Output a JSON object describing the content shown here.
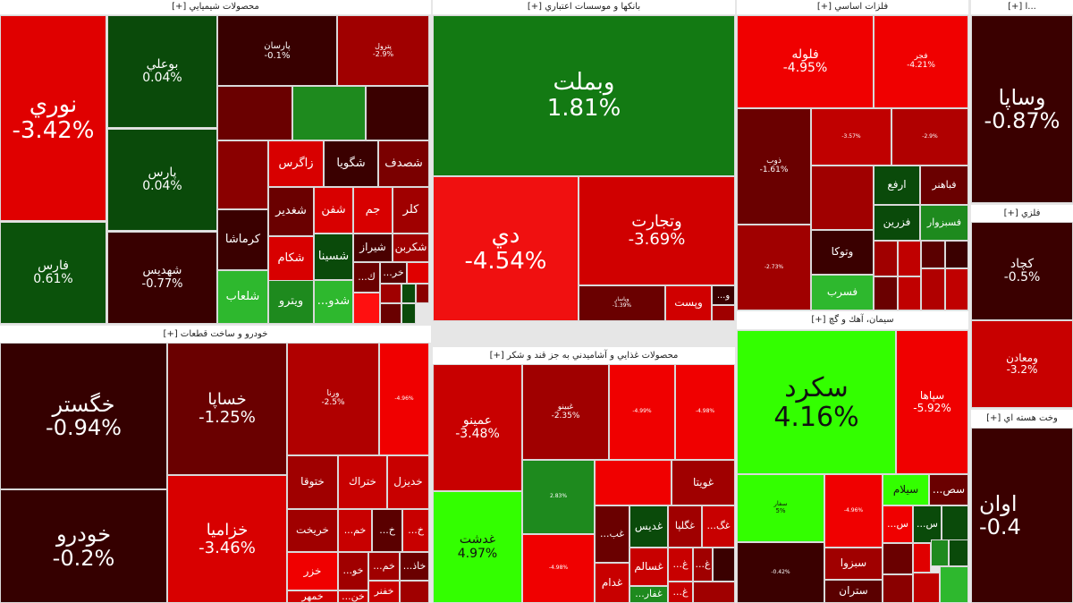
{
  "colors": {
    "strong_red": "#f00000",
    "red": "#d00000",
    "dark_red": "#3a0000",
    "dark_green": "#0a4d0a",
    "green": "#137a13",
    "bright_green": "#33ff00"
  },
  "sections": [
    {
      "title": "محصولات شيميايي [+]",
      "tiles": [
        {
          "symbol": "نوري",
          "change": "-3.42%",
          "color": "#e00000"
        },
        {
          "symbol": "فارس",
          "change": "0.61%",
          "color": "#0b520b"
        },
        {
          "symbol": "بوعلي",
          "change": "0.04%",
          "color": "#0a4a0a"
        },
        {
          "symbol": "پارس",
          "change": "0.04%",
          "color": "#0a4a0a"
        },
        {
          "symbol": "شهديس",
          "change": "-0.77%",
          "color": "#380000"
        },
        {
          "symbol": "پارسان",
          "change": "-0.1%",
          "color": "#380000"
        },
        {
          "symbol": "پترول",
          "change": "-2.9%",
          "color": "#a00000"
        },
        {
          "symbol": "",
          "change": "",
          "color": "#6a0000"
        },
        {
          "symbol": "",
          "change": "",
          "color": "#1e8a1e"
        },
        {
          "symbol": "",
          "change": "",
          "color": "#3a0000"
        },
        {
          "symbol": "",
          "change": "",
          "color": "#8a0000"
        },
        {
          "symbol": "زاگرس",
          "change": "",
          "color": "#d80000"
        },
        {
          "symbol": "شگويا",
          "change": "",
          "color": "#3a0000"
        },
        {
          "symbol": "شصدف",
          "change": "",
          "color": "#7a0000"
        },
        {
          "symbol": "شغدير",
          "change": "",
          "color": "#6a0000"
        },
        {
          "symbol": "شفن",
          "change": "",
          "color": "#d80000"
        },
        {
          "symbol": "جم",
          "change": "",
          "color": "#d80000"
        },
        {
          "symbol": "كلر",
          "change": "",
          "color": "#a00000"
        },
        {
          "symbol": "كرماشا",
          "change": "",
          "color": "#3a0000"
        },
        {
          "symbol": "شكام",
          "change": "",
          "color": "#d80000"
        },
        {
          "symbol": "شسينا",
          "change": "",
          "color": "#0a4a0a"
        },
        {
          "symbol": "شيراز",
          "change": "",
          "color": "#4a0000"
        },
        {
          "symbol": "شكربن",
          "change": "",
          "color": "#a00000"
        },
        {
          "symbol": "شلعاب",
          "change": "",
          "color": "#2eb82e"
        },
        {
          "symbol": "ويترو",
          "change": "",
          "color": "#1e8a1e"
        },
        {
          "symbol": "شدو...",
          "change": "",
          "color": "#2eb82e"
        },
        {
          "symbol": "ك...",
          "change": "",
          "color": "#6a0000"
        },
        {
          "symbol": "خر...",
          "change": "",
          "color": "#5a0000"
        },
        {
          "symbol": "",
          "change": "",
          "color": "#e00000"
        },
        {
          "symbol": "",
          "change": "",
          "color": "#ff1010"
        },
        {
          "symbol": "",
          "change": "",
          "color": "#a00000"
        },
        {
          "symbol": "",
          "change": "",
          "color": "#0a4a0a"
        },
        {
          "symbol": "",
          "change": "",
          "color": "#8a0000"
        },
        {
          "symbol": "",
          "change": "",
          "color": "#0a4a0a"
        },
        {
          "symbol": "",
          "change": "",
          "color": "#6a0000"
        }
      ]
    },
    {
      "title": "بانكها و موسسات اعتباري [+]",
      "tiles": [
        {
          "symbol": "وبملت",
          "change": "1.81%",
          "color": "#137a13"
        },
        {
          "symbol": "دي",
          "change": "-4.54%",
          "color": "#f01010"
        },
        {
          "symbol": "وتجارت",
          "change": "-3.69%",
          "color": "#d00000"
        },
        {
          "symbol": "وپاسار",
          "change": "-1.39%",
          "color": "#6a0000"
        },
        {
          "symbol": "وپست",
          "change": "",
          "color": "#d00000"
        },
        {
          "symbol": "و...",
          "change": "",
          "color": "#3a0000"
        },
        {
          "symbol": "",
          "change": "",
          "color": "#a00000"
        }
      ]
    },
    {
      "title": "فلزات اساسي [+]",
      "tiles": [
        {
          "symbol": "فلوله",
          "change": "-4.95%",
          "color": "#f00000"
        },
        {
          "symbol": "فجر",
          "change": "-4.21%",
          "color": "#f00000"
        },
        {
          "symbol": "ذوب",
          "change": "-1.61%",
          "color": "#6a0000"
        },
        {
          "symbol": "",
          "change": "-3.57%",
          "color": "#c00000"
        },
        {
          "symbol": "",
          "change": "-2.9%",
          "color": "#b00000"
        },
        {
          "symbol": "",
          "change": "",
          "color": "#a00000"
        },
        {
          "symbol": "ارفع",
          "change": "",
          "color": "#0a4a0a"
        },
        {
          "symbol": "فباهنر",
          "change": "",
          "color": "#6a0000"
        },
        {
          "symbol": "فزرين",
          "change": "",
          "color": "#0a4a0a"
        },
        {
          "symbol": "فسبزوار",
          "change": "",
          "color": "#1e8a1e"
        },
        {
          "symbol": "",
          "change": "-2.73%",
          "color": "#a00000"
        },
        {
          "symbol": "وتوكا",
          "change": "",
          "color": "#3a0000"
        },
        {
          "symbol": "فسرب",
          "change": "",
          "color": "#2eb82e"
        },
        {
          "symbol": "",
          "change": "",
          "color": "#a00000"
        },
        {
          "symbol": "",
          "change": "",
          "color": "#c00000"
        },
        {
          "symbol": "",
          "change": "",
          "color": "#5a0000"
        },
        {
          "symbol": "",
          "change": "",
          "color": "#3a0000"
        },
        {
          "symbol": "",
          "change": "",
          "color": "#6a0000"
        },
        {
          "symbol": "",
          "change": "",
          "color": "#c00000"
        },
        {
          "symbol": "",
          "change": "",
          "color": "#b00000"
        },
        {
          "symbol": "",
          "change": "",
          "color": "#c00000"
        }
      ]
    },
    {
      "title": "سيمان، آهك و گچ [+]",
      "tiles": [
        {
          "symbol": "سكرد",
          "change": "4.16%",
          "color": "#33ff00",
          "dark": true
        },
        {
          "symbol": "سپاها",
          "change": "-5.92%",
          "color": "#f00000"
        },
        {
          "symbol": "سفار",
          "change": "5%",
          "color": "#33ff00",
          "dark": true
        },
        {
          "symbol": "",
          "change": "-4.96%",
          "color": "#f00000"
        },
        {
          "symbol": "سيلام",
          "change": "",
          "color": "#33ff00",
          "dark": true
        },
        {
          "symbol": "سص...",
          "change": "",
          "color": "#6a0000"
        },
        {
          "symbol": "س...",
          "change": "",
          "color": "#f00000"
        },
        {
          "symbol": "س...",
          "change": "",
          "color": "#0a4a0a"
        },
        {
          "symbol": "",
          "change": "",
          "color": "#0a4a0a"
        },
        {
          "symbol": "",
          "change": "-0.42%",
          "color": "#3a0000"
        },
        {
          "symbol": "سبزوا",
          "change": "",
          "color": "#a00000"
        },
        {
          "symbol": "ستران",
          "change": "",
          "color": "#5a0000"
        },
        {
          "symbol": "",
          "change": "",
          "color": "#6a0000"
        },
        {
          "symbol": "",
          "change": "",
          "color": "#e00000"
        },
        {
          "symbol": "",
          "change": "",
          "color": "#1e8a1e"
        },
        {
          "symbol": "",
          "change": "",
          "color": "#0a4a0a"
        },
        {
          "symbol": "",
          "change": "",
          "color": "#8a0000"
        },
        {
          "symbol": "",
          "change": "",
          "color": "#c00000"
        },
        {
          "symbol": "",
          "change": "",
          "color": "#2eb82e"
        }
      ]
    },
    {
      "title": "...ا [+]",
      "tiles": [
        {
          "symbol": "وساپا",
          "change": "-0.87%",
          "color": "#3a0000"
        }
      ]
    },
    {
      "title": "فلزي [+]",
      "tiles": [
        {
          "symbol": "كچاد",
          "change": "-0.5%",
          "color": "#3a0000"
        },
        {
          "symbol": "ومعادن",
          "change": "-3.2%",
          "color": "#c80000"
        }
      ]
    },
    {
      "title": "وخت هسته اي [+]",
      "tiles": [
        {
          "symbol": "اوان",
          "change": "-0.4",
          "color": "#3a0000"
        }
      ]
    },
    {
      "title": "خودرو و ساخت قطعات [+]",
      "tiles": [
        {
          "symbol": "خگستر",
          "change": "-0.94%",
          "color": "#350000"
        },
        {
          "symbol": "خودرو",
          "change": "-0.2%",
          "color": "#350000"
        },
        {
          "symbol": "خساپا",
          "change": "-1.25%",
          "color": "#6a0000"
        },
        {
          "symbol": "خزاميا",
          "change": "-3.46%",
          "color": "#d80000"
        },
        {
          "symbol": "ورنا",
          "change": "-2.5%",
          "color": "#b00000"
        },
        {
          "symbol": "",
          "change": "-4.96%",
          "color": "#f00000"
        },
        {
          "symbol": "ختوقا",
          "change": "",
          "color": "#a00000"
        },
        {
          "symbol": "ختراك",
          "change": "",
          "color": "#c80000"
        },
        {
          "symbol": "خديزل",
          "change": "",
          "color": "#c80000"
        },
        {
          "symbol": "خريخت",
          "change": "",
          "color": "#a00000"
        },
        {
          "symbol": "خم...",
          "change": "",
          "color": "#c80000"
        },
        {
          "symbol": "خ...",
          "change": "",
          "color": "#5a0000"
        },
        {
          "symbol": "خ...",
          "change": "",
          "color": "#c80000"
        },
        {
          "symbol": "خزر",
          "change": "",
          "color": "#f00000"
        },
        {
          "symbol": "خو...",
          "change": "",
          "color": "#a00000"
        },
        {
          "symbol": "خم...",
          "change": "",
          "color": "#a00000"
        },
        {
          "symbol": "خاذ...",
          "change": "",
          "color": "#6a0000"
        },
        {
          "symbol": "خمهر",
          "change": "",
          "color": "#d00000"
        },
        {
          "symbol": "خن...",
          "change": "",
          "color": "#c80000"
        },
        {
          "symbol": "خفنر",
          "change": "",
          "color": "#c80000"
        },
        {
          "symbol": "",
          "change": "",
          "color": "#a00000"
        }
      ]
    },
    {
      "title": "محصولات غذايي و آشاميدني به جز قند و شكر [+]",
      "tiles": [
        {
          "symbol": "عمينو",
          "change": "-3.48%",
          "color": "#c80000"
        },
        {
          "symbol": "غدشت",
          "change": "4.97%",
          "color": "#33ff00",
          "dark": true
        },
        {
          "symbol": "غبينو",
          "change": "-2.35%",
          "color": "#a00000"
        },
        {
          "symbol": "",
          "change": "-4.99%",
          "color": "#f00000"
        },
        {
          "symbol": "",
          "change": "-4.98%",
          "color": "#f00000"
        },
        {
          "symbol": "",
          "change": "2.83%",
          "color": "#1e8a1e"
        },
        {
          "symbol": "",
          "change": "",
          "color": "#f00000"
        },
        {
          "symbol": "غويتا",
          "change": "",
          "color": "#a00000"
        },
        {
          "symbol": "غب...",
          "change": "",
          "color": "#6a0000"
        },
        {
          "symbol": "غديس",
          "change": "",
          "color": "#0a4a0a"
        },
        {
          "symbol": "غگلپا",
          "change": "",
          "color": "#a00000"
        },
        {
          "symbol": "غگ...",
          "change": "",
          "color": "#c80000"
        },
        {
          "symbol": "",
          "change": "-4.98%",
          "color": "#f00000"
        },
        {
          "symbol": "غسالم",
          "change": "",
          "color": "#c80000"
        },
        {
          "symbol": "غ...",
          "change": "",
          "color": "#c80000"
        },
        {
          "symbol": "غ...",
          "change": "",
          "color": "#a00000"
        },
        {
          "symbol": "",
          "change": "",
          "color": "#3a0000"
        },
        {
          "symbol": "غدام",
          "change": "",
          "color": "#c80000"
        },
        {
          "symbol": "غفار...",
          "change": "",
          "color": "#1e8a1e"
        },
        {
          "symbol": "غ...",
          "change": "",
          "color": "#c80000"
        },
        {
          "symbol": "",
          "change": "",
          "color": "#a00000"
        }
      ]
    }
  ]
}
